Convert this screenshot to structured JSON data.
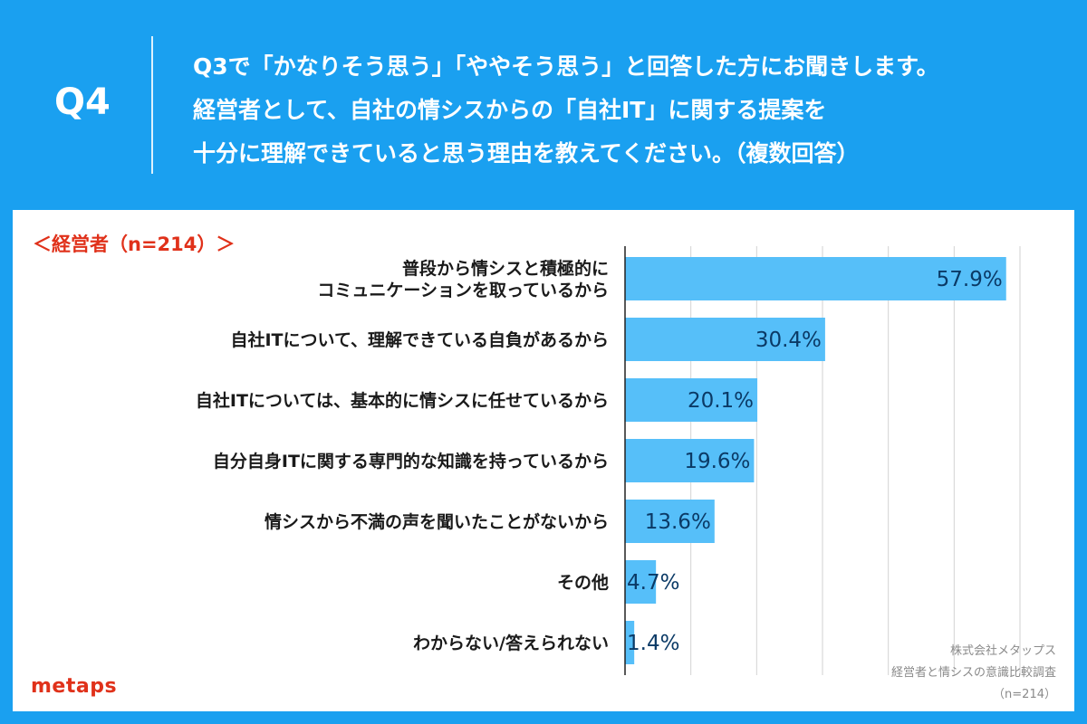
{
  "header": {
    "q_label": "Q4",
    "question_lines": [
      "Q3で「かなりそう思う」「ややそう思う」と回答した方にお聞きします。",
      "経営者として、自社の情シスからの「自社IT」に関する提案を",
      "十分に理解できていると思う理由を教えてください。（複数回答）"
    ]
  },
  "chart_data": {
    "type": "bar",
    "orientation": "horizontal",
    "group_label": "＜経営者（n=214）＞",
    "categories": [
      "普段から情シスと積極的に\nコミュニケーションを取っているから",
      "自社ITについて、理解できている自負があるから",
      "自社ITについては、基本的に情シスに任せているから",
      "自分自身ITに関する専門的な知識を持っているから",
      "情シスから不満の声を聞いたことがないから",
      "その他",
      "わからない/答えられない"
    ],
    "values": [
      57.9,
      30.4,
      20.1,
      19.6,
      13.6,
      4.7,
      1.4
    ],
    "value_labels": [
      "57.9%",
      "30.4%",
      "20.1%",
      "19.6%",
      "13.6%",
      "4.7%",
      "1.4%"
    ],
    "xlim": [
      0,
      60
    ],
    "grid": true,
    "bar_color": "#56bff9"
  },
  "footer": {
    "logo": "metaps",
    "source_lines": [
      "株式会社メタップス",
      "経営者と情シスの意識比較調査",
      "（n=214）"
    ]
  }
}
